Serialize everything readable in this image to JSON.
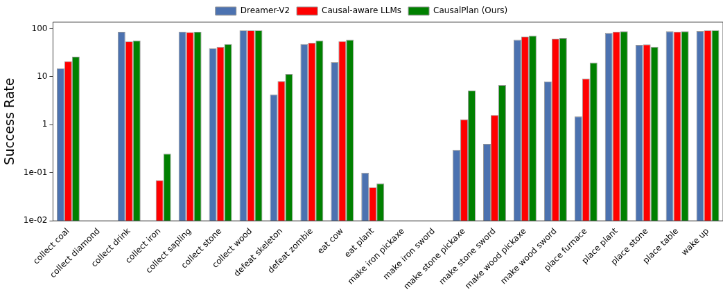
{
  "chart_data": {
    "type": "bar",
    "ylabel": "Success Rate",
    "log": "y",
    "legend": "top",
    "grid": false,
    "categories": [
      "collect coal",
      "collect diamond",
      "collect drink",
      "collect iron",
      "collect sapling",
      "collect stone",
      "collect wood",
      "defeat skeleton",
      "defeat zombie",
      "eat cow",
      "eat plant",
      "make iron pickaxe",
      "make iron sword",
      "make stone pickaxe",
      "make stone sword",
      "make wood pickaxe",
      "make wood sword",
      "place furnace",
      "place plant",
      "place stone",
      "place table",
      "wake up"
    ],
    "ylim": [
      0.01,
      137
    ],
    "yticks": [
      {
        "value": 0.01,
        "label": "1e-02"
      },
      {
        "value": 0.1,
        "label": "1e-01"
      },
      1,
      10,
      100
    ],
    "series": [
      {
        "name": "Dreamer-V2",
        "color": "#4c72b0",
        "values": [
          15,
          null,
          86,
          null,
          87,
          39,
          92,
          4.3,
          48,
          20,
          0.1,
          null,
          null,
          0.3,
          0.4,
          59,
          8,
          1.5,
          81,
          46,
          88,
          89
        ]
      },
      {
        "name": "Causal-aware LLMs",
        "color": "#ff0000",
        "values": [
          21,
          null,
          54,
          0.07,
          85,
          42,
          92,
          8.1,
          51,
          55,
          0.05,
          null,
          null,
          1.3,
          1.6,
          68,
          62,
          9.2,
          87,
          47,
          87,
          92
        ]
      },
      {
        "name": "CausalPlan (Ours)",
        "color": "#008000",
        "values": [
          26,
          null,
          57,
          0.25,
          86,
          48,
          92,
          11.4,
          57,
          59,
          0.06,
          null,
          null,
          5.2,
          6.7,
          72,
          64,
          19.7,
          88,
          42,
          88,
          93
        ]
      }
    ]
  }
}
